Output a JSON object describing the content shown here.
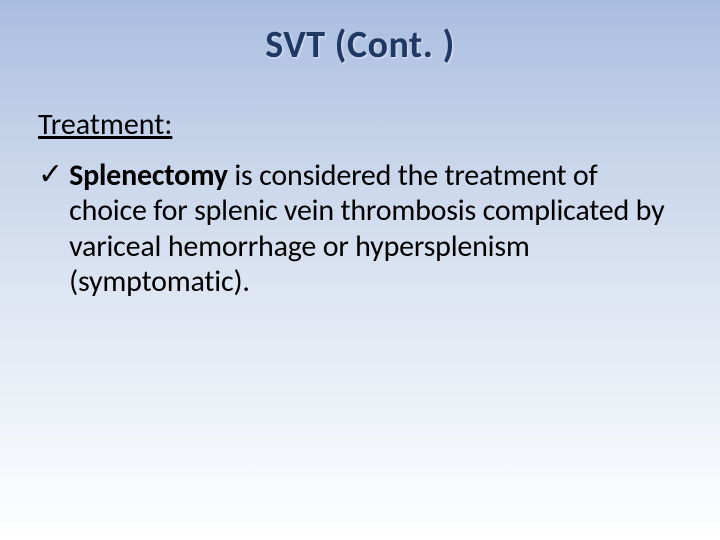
{
  "slide": {
    "title": "SVT (Cont. )",
    "subheading": "Treatment:",
    "bullet": {
      "marker": "✓",
      "bold_lead": "Splenectomy",
      "rest": " is considered the treatment of choice for splenic vein thrombosis complicated by variceal hemorrhage or hypersplenism (symptomatic)."
    }
  },
  "style": {
    "background_gradient_top": "#a9bde0",
    "background_gradient_bottom": "#ffffff",
    "title_color": "#1f3864",
    "title_fontsize_pt": 28,
    "subheading_fontsize_pt": 22,
    "body_fontsize_pt": 22,
    "text_color": "#000000",
    "font_family": "Calibri"
  }
}
